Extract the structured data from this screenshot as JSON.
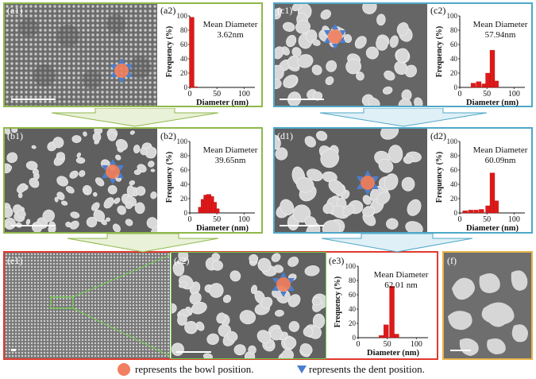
{
  "colors": {
    "green": "#8fb84a",
    "blue": "#4fa8c8",
    "red": "#e03a2e",
    "gold": "#e8b34a",
    "bar": "#dd1a1a",
    "bowl": "#f08060",
    "dent": "#4a7fd0"
  },
  "panels": {
    "a1": "(a1)",
    "a2": "(a2)",
    "b1": "(b1)",
    "b2": "(b2)",
    "c1": "(c1)",
    "c2": "(c2)",
    "d1": "(d1)",
    "d2": "(d2)",
    "e1": "(e1)",
    "e2": "(e2)",
    "e3": "(e3)",
    "f": "(f)"
  },
  "mean_label": "Mean Diameter",
  "axis": {
    "xlabel": "Diameter (nm)",
    "ylabel": "Frequency (%)"
  },
  "legend": {
    "bowl": "represents the bowl position.",
    "dent": "represents the dent position."
  },
  "chart_data": [
    {
      "id": "a2",
      "type": "bar",
      "mean": "3.62nm",
      "x": [
        0,
        50,
        100
      ],
      "y_ticks": [
        0,
        20,
        40,
        60,
        80,
        100
      ],
      "xlim": [
        0,
        120
      ],
      "ylim": [
        0,
        100
      ],
      "bars": [
        {
          "x": 3.6,
          "y": 98
        },
        {
          "x": 10,
          "y": 1
        }
      ]
    },
    {
      "id": "b2",
      "type": "bar",
      "mean": "39.65nm",
      "x": [
        0,
        50,
        100
      ],
      "y_ticks": [
        0,
        20,
        40,
        60,
        80,
        100
      ],
      "xlim": [
        0,
        120
      ],
      "ylim": [
        0,
        100
      ],
      "bars": [
        {
          "x": 20,
          "y": 8
        },
        {
          "x": 25,
          "y": 19
        },
        {
          "x": 30,
          "y": 25
        },
        {
          "x": 35,
          "y": 26
        },
        {
          "x": 40,
          "y": 23
        },
        {
          "x": 45,
          "y": 15
        },
        {
          "x": 50,
          "y": 6
        }
      ]
    },
    {
      "id": "c2",
      "type": "bar",
      "mean": "57.94nm",
      "x": [
        0,
        50,
        100
      ],
      "y_ticks": [
        0,
        20,
        40,
        60,
        80,
        100
      ],
      "xlim": [
        0,
        120
      ],
      "ylim": [
        0,
        100
      ],
      "bars": [
        {
          "x": 25,
          "y": 6
        },
        {
          "x": 35,
          "y": 8
        },
        {
          "x": 45,
          "y": 5
        },
        {
          "x": 52,
          "y": 20
        },
        {
          "x": 60,
          "y": 52
        },
        {
          "x": 67,
          "y": 9
        }
      ]
    },
    {
      "id": "d2",
      "type": "bar",
      "mean": "60.09nm",
      "x": [
        0,
        50,
        100
      ],
      "y_ticks": [
        0,
        20,
        40,
        60,
        80,
        100
      ],
      "xlim": [
        0,
        120
      ],
      "ylim": [
        0,
        100
      ],
      "bars": [
        {
          "x": 10,
          "y": 3
        },
        {
          "x": 20,
          "y": 4
        },
        {
          "x": 30,
          "y": 4
        },
        {
          "x": 40,
          "y": 5
        },
        {
          "x": 52,
          "y": 10
        },
        {
          "x": 60,
          "y": 56
        },
        {
          "x": 67,
          "y": 17
        }
      ]
    },
    {
      "id": "e3",
      "type": "bar",
      "mean": "62.01 nm",
      "x": [
        0,
        50,
        100
      ],
      "y_ticks": [
        0,
        20,
        40,
        60,
        80,
        100
      ],
      "xlim": [
        0,
        120
      ],
      "ylim": [
        0,
        100
      ],
      "bars": [
        {
          "x": 40,
          "y": 3
        },
        {
          "x": 48,
          "y": 18
        },
        {
          "x": 58,
          "y": 72
        },
        {
          "x": 66,
          "y": 5
        }
      ]
    }
  ]
}
